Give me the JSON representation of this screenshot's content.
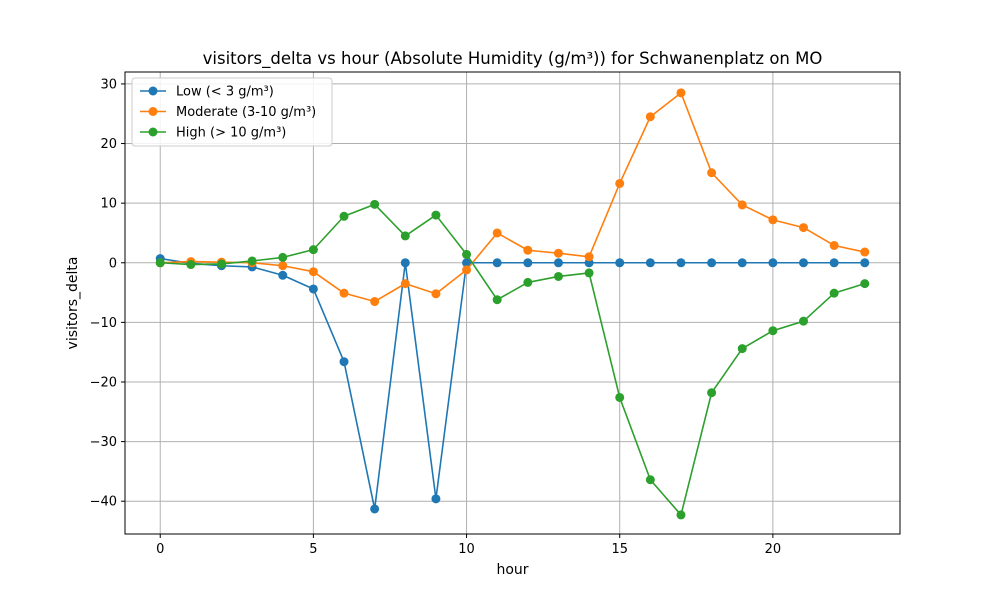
{
  "chart_data": {
    "type": "line",
    "title": "visitors_delta vs hour (Absolute Humidity (g/m³)) for Schwanenplatz on MO",
    "xlabel": "hour",
    "ylabel": "visitors_delta",
    "x": [
      0,
      1,
      2,
      3,
      4,
      5,
      6,
      7,
      8,
      9,
      10,
      11,
      12,
      13,
      14,
      15,
      16,
      17,
      18,
      19,
      20,
      21,
      22,
      23
    ],
    "xlim": [
      -1.15,
      24.15
    ],
    "ylim": [
      -45.5,
      32.0
    ],
    "xticks": [
      0,
      5,
      10,
      15,
      20
    ],
    "yticks": [
      -40,
      -30,
      -20,
      -10,
      0,
      10,
      20,
      30
    ],
    "grid": true,
    "legend_position": "upper-left",
    "series": [
      {
        "name": "Low (< 3 g/m³)",
        "color": "#1f77b4",
        "values": [
          0.7,
          -0.1,
          -0.5,
          -0.7,
          -2.1,
          -4.4,
          -16.6,
          -41.3,
          0.0,
          -39.6,
          0.0,
          0.0,
          0.0,
          0.0,
          0.0,
          0.0,
          0.0,
          0.0,
          0.0,
          0.0,
          0.0,
          0.0,
          0.0,
          0.0
        ]
      },
      {
        "name": "Moderate (3-10 g/m³)",
        "color": "#ff7f0e",
        "values": [
          0.0,
          0.2,
          0.1,
          0.0,
          -0.5,
          -1.5,
          -5.1,
          -6.5,
          -3.5,
          -5.2,
          -1.2,
          5.0,
          2.1,
          1.6,
          1.0,
          13.3,
          24.5,
          28.5,
          15.1,
          9.7,
          7.2,
          5.9,
          2.9,
          1.8
        ]
      },
      {
        "name": "High (> 10 g/m³)",
        "color": "#2ca02c",
        "values": [
          0.0,
          -0.3,
          -0.2,
          0.3,
          0.9,
          2.2,
          7.8,
          9.8,
          4.5,
          8.0,
          1.4,
          -6.2,
          -3.3,
          -2.3,
          -1.7,
          -22.6,
          -36.4,
          -42.3,
          -21.8,
          -14.4,
          -11.4,
          -9.8,
          -5.1,
          -3.5
        ]
      }
    ]
  }
}
